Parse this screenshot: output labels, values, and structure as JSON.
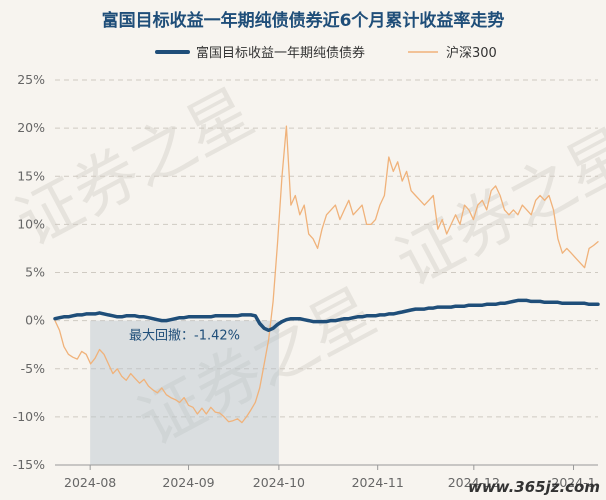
{
  "chart_data": {
    "type": "line",
    "title": "富国目标收益一年期纯债债券近6个月累计收益率走势",
    "xlabel": "",
    "ylabel": "",
    "ylim": [
      -15,
      25
    ],
    "yticks": [
      "25%",
      "20%",
      "15%",
      "10%",
      "5%",
      "0%",
      "-5%",
      "-10%",
      "-15%"
    ],
    "ytick_values": [
      25,
      20,
      15,
      10,
      5,
      0,
      -5,
      -10,
      -15
    ],
    "xticks": [
      "2024-08",
      "2024-09",
      "2024-10",
      "2024-11",
      "2024-12",
      "2024-1"
    ],
    "xtick_positions": [
      7.9,
      30,
      50.3,
      72.5,
      94.1,
      116.5
    ],
    "x_range": [
      0,
      122
    ],
    "grid": true,
    "legend_position": "top",
    "series": [
      {
        "name": "富国目标收益一年期纯债债券",
        "color": "#1f4e79",
        "values": [
          0.2,
          0.3,
          0.4,
          0.4,
          0.5,
          0.6,
          0.6,
          0.7,
          0.7,
          0.7,
          0.8,
          0.7,
          0.6,
          0.5,
          0.4,
          0.4,
          0.5,
          0.5,
          0.5,
          0.4,
          0.4,
          0.3,
          0.2,
          0.1,
          0.0,
          0.0,
          0.1,
          0.2,
          0.3,
          0.3,
          0.4,
          0.4,
          0.4,
          0.4,
          0.4,
          0.4,
          0.5,
          0.5,
          0.5,
          0.5,
          0.5,
          0.5,
          0.6,
          0.6,
          0.6,
          0.5,
          -0.3,
          -0.8,
          -1.0,
          -0.8,
          -0.4,
          -0.1,
          0.1,
          0.2,
          0.2,
          0.2,
          0.1,
          0.0,
          -0.1,
          -0.1,
          -0.1,
          -0.1,
          0.0,
          0.0,
          0.1,
          0.2,
          0.2,
          0.3,
          0.4,
          0.4,
          0.5,
          0.5,
          0.5,
          0.6,
          0.6,
          0.7,
          0.7,
          0.8,
          0.9,
          1.0,
          1.1,
          1.2,
          1.2,
          1.2,
          1.3,
          1.3,
          1.4,
          1.4,
          1.4,
          1.4,
          1.5,
          1.5,
          1.5,
          1.6,
          1.6,
          1.6,
          1.6,
          1.7,
          1.7,
          1.7,
          1.8,
          1.8,
          1.9,
          2.0,
          2.1,
          2.1,
          2.1,
          2.0,
          2.0,
          2.0,
          1.9,
          1.9,
          1.9,
          1.9,
          1.8,
          1.8,
          1.8,
          1.8,
          1.8,
          1.8,
          1.7,
          1.7,
          1.7
        ]
      },
      {
        "name": "沪深300",
        "color": "#f0b27a",
        "values": [
          0.0,
          -1.0,
          -2.7,
          -3.5,
          -3.8,
          -4.0,
          -3.2,
          -3.5,
          -4.5,
          -3.9,
          -3.0,
          -3.5,
          -4.5,
          -5.5,
          -5.0,
          -5.8,
          -6.2,
          -5.5,
          -6.0,
          -6.5,
          -6.1,
          -6.8,
          -7.2,
          -7.5,
          -7.0,
          -7.7,
          -8.0,
          -8.2,
          -8.5,
          -8.0,
          -8.8,
          -9.0,
          -9.7,
          -9.1,
          -9.7,
          -9.0,
          -9.5,
          -9.6,
          -10.0,
          -10.5,
          -10.4,
          -10.2,
          -10.6,
          -10.0,
          -9.3,
          -8.5,
          -7.0,
          -4.5,
          -2.0,
          2.0,
          8.0,
          15.0,
          20.2,
          12.0,
          13.0,
          11.0,
          12.0,
          9.0,
          8.5,
          7.5,
          9.5,
          11.0,
          11.5,
          12.0,
          10.5,
          11.5,
          12.5,
          11.0,
          11.5,
          12.0,
          10.0,
          10.0,
          10.5,
          12.0,
          13.0,
          17.0,
          15.5,
          16.5,
          14.5,
          15.5,
          13.5,
          13.0,
          12.5,
          12.0,
          12.5,
          13.0,
          9.5,
          10.5,
          9.0,
          10.0,
          11.0,
          10.0,
          12.0,
          11.5,
          10.5,
          12.0,
          12.5,
          11.5,
          13.5,
          14.0,
          13.0,
          11.5,
          11.0,
          11.5,
          11.0,
          12.0,
          11.5,
          11.0,
          12.5,
          13.0,
          12.5,
          13.0,
          11.5,
          8.5,
          7.0,
          7.5,
          7.0,
          6.5,
          6.0,
          5.5,
          7.5,
          7.8,
          8.2
        ]
      }
    ],
    "annotation": {
      "label": "最大回撤：-1.42%",
      "x_start": 7.9,
      "x_end": 50.3
    }
  },
  "watermarks": {
    "faint": [
      "证券之星",
      "证券之星",
      "证券之星"
    ],
    "site": "www.365jz.com"
  }
}
